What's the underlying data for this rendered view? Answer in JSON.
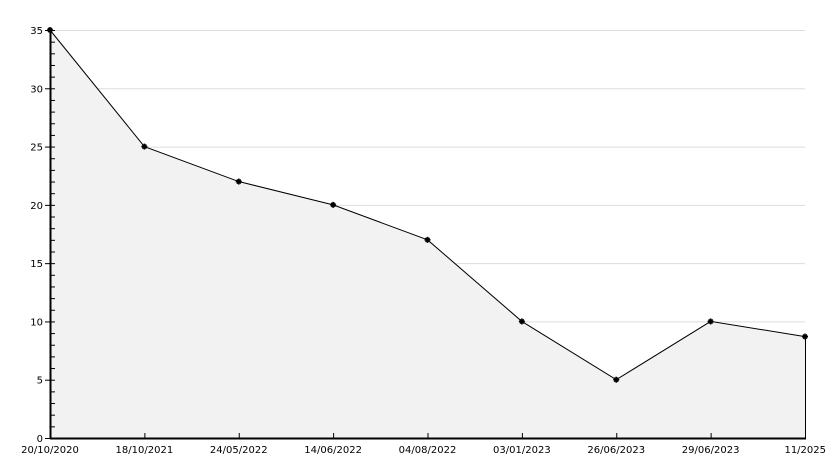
{
  "chart_data": {
    "type": "area",
    "title": "",
    "xlabel": "",
    "ylabel": "",
    "categories": [
      "20/10/2020",
      "18/10/2021",
      "24/05/2022",
      "14/06/2022",
      "04/08/2022",
      "03/01/2023",
      "26/06/2023",
      "29/06/2023",
      "11/2025"
    ],
    "values": [
      35,
      25,
      22,
      20,
      17,
      10,
      5,
      10,
      8.7
    ],
    "ylim": [
      0,
      35
    ],
    "yticks": [
      0,
      5,
      10,
      15,
      20,
      25,
      30,
      35
    ],
    "grid": true,
    "legend": "none",
    "colors": {
      "line": "#000000",
      "fill": "#f2f2f2",
      "grid": "#dddddd",
      "marker": "#000000"
    }
  }
}
